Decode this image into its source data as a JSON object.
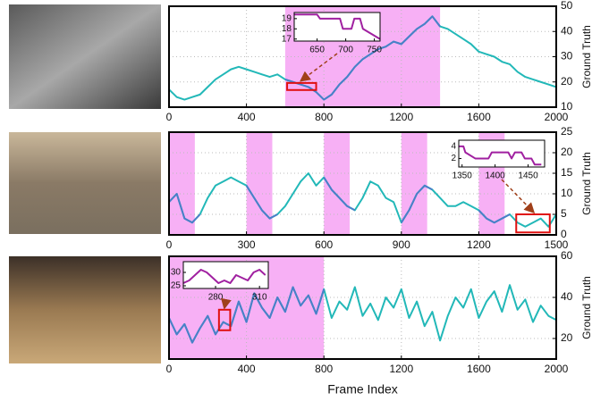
{
  "chart_data": [
    {
      "type": "line",
      "y_label": "Ground Truth",
      "xlim": [
        0,
        2000
      ],
      "ylim": [
        10,
        50
      ],
      "xticks": [
        0,
        400,
        800,
        1200,
        1600,
        2000
      ],
      "yticks": [
        10,
        20,
        30,
        40,
        50
      ],
      "grid": true,
      "highlight_color": "#f7b0f5",
      "highlight": [
        [
          600,
          1400
        ]
      ],
      "x": [
        0,
        40,
        80,
        120,
        160,
        200,
        240,
        280,
        320,
        360,
        400,
        440,
        480,
        520,
        560,
        600,
        640,
        680,
        720,
        760,
        800,
        840,
        880,
        920,
        960,
        1000,
        1040,
        1080,
        1120,
        1160,
        1200,
        1240,
        1280,
        1320,
        1360,
        1400,
        1440,
        1480,
        1520,
        1560,
        1600,
        1640,
        1680,
        1720,
        1760,
        1800,
        1840,
        1880,
        1920,
        1960,
        2000
      ],
      "series": [
        {
          "color": "#22b8b8",
          "values": [
            17,
            14,
            13,
            14,
            15,
            18,
            21,
            23,
            25,
            26,
            25,
            24,
            23,
            22,
            23,
            21,
            20,
            19,
            18,
            16,
            13,
            15,
            19,
            22,
            26,
            29,
            31,
            33,
            34,
            36,
            35,
            38,
            41,
            43,
            46,
            42,
            41,
            39,
            37,
            35,
            32,
            31,
            30,
            28,
            27,
            24,
            22,
            21,
            20,
            19,
            18
          ]
        },
        {
          "color": "#4a7fc8",
          "values": [
            null,
            null,
            null,
            null,
            null,
            null,
            null,
            null,
            null,
            null,
            null,
            null,
            null,
            null,
            null,
            21,
            20,
            19,
            18,
            16,
            13,
            15,
            19,
            22,
            26,
            29,
            31,
            33,
            34,
            36,
            35,
            38,
            41,
            43,
            46,
            42,
            null,
            null,
            null,
            null,
            null,
            null,
            null,
            null,
            null,
            null,
            null,
            null,
            null,
            null,
            null
          ]
        }
      ],
      "inset": {
        "color": "#a020a0",
        "xlim": [
          610,
          760
        ],
        "ylim": [
          16.8,
          19.6
        ],
        "xticks": [
          650,
          700,
          750
        ],
        "yticks": [
          17,
          18,
          19
        ],
        "x": [
          610,
          630,
          650,
          655,
          690,
          695,
          710,
          715,
          725,
          730,
          760
        ],
        "values": [
          19.4,
          19.4,
          19.4,
          19,
          19,
          18,
          18,
          19,
          19,
          18,
          17
        ]
      }
    },
    {
      "type": "line",
      "y_label": "Ground Truth",
      "xlim": [
        0,
        1500
      ],
      "ylim": [
        0,
        25
      ],
      "xticks": [
        0,
        300,
        600,
        900,
        1200,
        1500
      ],
      "yticks": [
        0,
        5,
        10,
        15,
        20,
        25
      ],
      "grid": true,
      "highlight_color": "#f7b0f5",
      "highlight": [
        [
          0,
          100
        ],
        [
          300,
          400
        ],
        [
          600,
          700
        ],
        [
          900,
          1000
        ],
        [
          1200,
          1300
        ]
      ],
      "x": [
        0,
        30,
        60,
        90,
        120,
        150,
        180,
        210,
        240,
        270,
        300,
        330,
        360,
        390,
        420,
        450,
        480,
        510,
        540,
        570,
        600,
        630,
        660,
        690,
        720,
        750,
        780,
        810,
        840,
        870,
        900,
        930,
        960,
        990,
        1020,
        1050,
        1080,
        1110,
        1140,
        1170,
        1200,
        1230,
        1260,
        1290,
        1320,
        1350,
        1380,
        1410,
        1440,
        1470,
        1500
      ],
      "series": [
        {
          "color": "#22b8b8",
          "values": [
            8,
            10,
            4,
            3,
            5,
            9,
            12,
            13,
            14,
            13,
            12,
            9,
            6,
            4,
            5,
            7,
            10,
            13,
            15,
            12,
            14,
            11,
            9,
            7,
            6,
            9,
            13,
            12,
            9,
            8,
            3,
            6,
            10,
            12,
            11,
            9,
            7,
            7,
            8,
            7,
            6,
            4,
            3,
            4,
            5,
            3,
            2,
            3,
            4,
            2,
            5
          ]
        },
        {
          "color": "#4a7fc8",
          "values": [
            8,
            10,
            4,
            3,
            5,
            null,
            null,
            null,
            null,
            null,
            12,
            9,
            6,
            4,
            5,
            null,
            null,
            null,
            null,
            null,
            14,
            11,
            9,
            7,
            6,
            null,
            null,
            null,
            null,
            null,
            3,
            6,
            10,
            12,
            11,
            null,
            null,
            null,
            null,
            null,
            6,
            4,
            3,
            4,
            5,
            null,
            null,
            null,
            null,
            null,
            null
          ]
        }
      ],
      "inset": {
        "color": "#a020a0",
        "xlim": [
          1345,
          1475
        ],
        "ylim": [
          0.6,
          5
        ],
        "xticks": [
          1350,
          1400,
          1450
        ],
        "yticks": [
          2,
          4
        ],
        "x": [
          1345,
          1352,
          1355,
          1370,
          1390,
          1395,
          1420,
          1425,
          1430,
          1440,
          1445,
          1455,
          1460,
          1470
        ],
        "values": [
          4,
          4,
          3,
          2,
          2,
          3,
          3,
          2,
          3,
          3,
          2,
          2,
          1,
          1
        ]
      }
    },
    {
      "type": "line",
      "y_label": "Ground Truth",
      "x_label": "Frame Index",
      "xlim": [
        0,
        2000
      ],
      "ylim": [
        10,
        60
      ],
      "xticks": [
        0,
        400,
        800,
        1200,
        1600,
        2000
      ],
      "yticks": [
        20,
        40,
        60
      ],
      "grid": true,
      "highlight_color": "#f7b0f5",
      "highlight": [
        [
          0,
          800
        ]
      ],
      "x": [
        0,
        40,
        80,
        120,
        160,
        200,
        240,
        280,
        320,
        360,
        400,
        440,
        480,
        520,
        560,
        600,
        640,
        680,
        720,
        760,
        800,
        840,
        880,
        920,
        960,
        1000,
        1040,
        1080,
        1120,
        1160,
        1200,
        1240,
        1280,
        1320,
        1360,
        1400,
        1440,
        1480,
        1520,
        1560,
        1600,
        1640,
        1680,
        1720,
        1760,
        1800,
        1840,
        1880,
        1920,
        1960,
        2000
      ],
      "series": [
        {
          "color": "#22b8b8",
          "values": [
            30,
            22,
            27,
            18,
            25,
            31,
            22,
            28,
            26,
            38,
            28,
            42,
            35,
            30,
            40,
            33,
            45,
            36,
            41,
            32,
            44,
            30,
            38,
            34,
            45,
            31,
            37,
            29,
            40,
            35,
            44,
            30,
            38,
            26,
            33,
            19,
            31,
            40,
            35,
            44,
            30,
            38,
            43,
            33,
            46,
            34,
            39,
            28,
            36,
            31,
            29
          ]
        },
        {
          "color": "#4a7fc8",
          "values": [
            30,
            22,
            27,
            18,
            25,
            31,
            22,
            28,
            26,
            38,
            28,
            42,
            35,
            30,
            40,
            33,
            45,
            36,
            41,
            32,
            44,
            null,
            null,
            null,
            null,
            null,
            null,
            null,
            null,
            null,
            null,
            null,
            null,
            null,
            null,
            null,
            null,
            null,
            null,
            null,
            null,
            null,
            null,
            null,
            null,
            null,
            null,
            null,
            null,
            null,
            null
          ]
        }
      ],
      "inset": {
        "color": "#a020a0",
        "xlim": [
          258,
          316
        ],
        "ylim": [
          24,
          34
        ],
        "xticks": [
          280,
          310
        ],
        "yticks": [
          25,
          30
        ],
        "x": [
          258,
          262,
          266,
          270,
          274,
          278,
          282,
          286,
          290,
          294,
          298,
          302,
          306,
          310,
          314
        ],
        "values": [
          26,
          27,
          29,
          31,
          30,
          28,
          26,
          27,
          26,
          29,
          28,
          27,
          30,
          31,
          29
        ]
      }
    }
  ]
}
